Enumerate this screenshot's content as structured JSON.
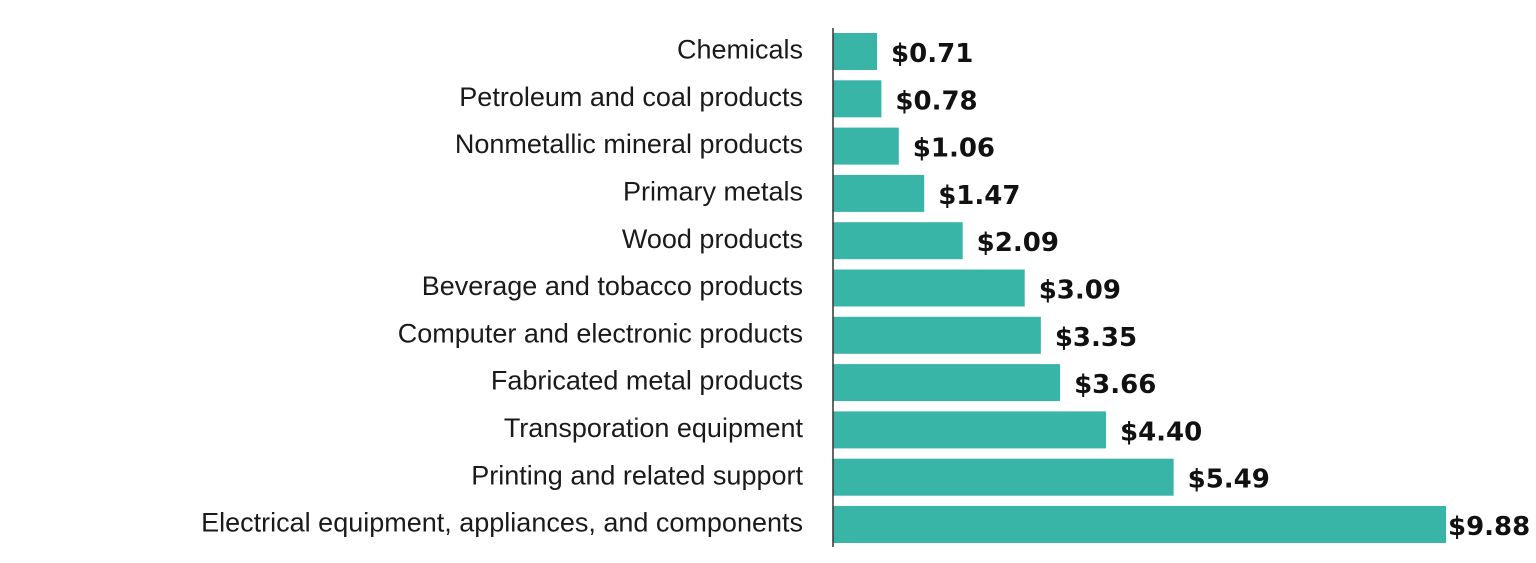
{
  "chart_data": {
    "type": "bar",
    "orientation": "horizontal",
    "title": "",
    "xlabel": "",
    "ylabel": "",
    "categories": [
      "Chemicals",
      "Petroleum and coal products",
      "Nonmetallic mineral products",
      "Primary metals",
      "Wood products",
      "Beverage and tobacco products",
      "Computer and electronic products",
      "Fabricated metal products",
      "Transporation equipment",
      "Printing and related support",
      "Electrical equipment, appliances, and components"
    ],
    "values": [
      0.71,
      0.78,
      1.06,
      1.47,
      2.09,
      3.09,
      3.35,
      3.66,
      4.4,
      5.49,
      9.88
    ],
    "value_labels": [
      "$0.71",
      "$0.78",
      "$1.06",
      "$1.47",
      "$2.09",
      "$3.09",
      "$3.35",
      "$3.66",
      "$4.40",
      "$5.49",
      "$9.88"
    ],
    "xlim": [
      0,
      9.88
    ],
    "grid": false,
    "legend": "none",
    "bar_color": "#39b5a8",
    "axis_color": "#333333"
  }
}
